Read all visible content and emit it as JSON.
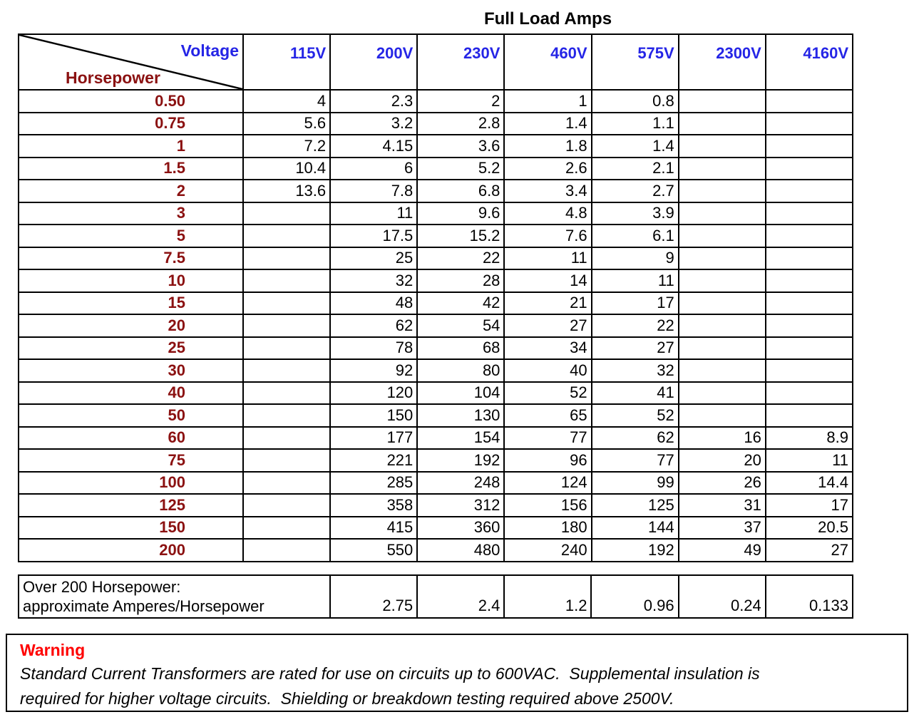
{
  "title": "Full Load Amps",
  "colors": {
    "header_blue": "#2525E6",
    "hp_red": "#8B1111",
    "warning_red": "#FF0000",
    "line_black": "#000000"
  },
  "table": {
    "corner": {
      "top_right_label": "Voltage",
      "bottom_left_label": "Horsepower"
    },
    "voltage_headers": [
      "115V",
      "200V",
      "230V",
      "460V",
      "575V",
      "2300V",
      "4160V"
    ],
    "rows": [
      {
        "hp": "0.50",
        "amps": [
          "4",
          "2.3",
          "2",
          "1",
          "0.8",
          "",
          ""
        ]
      },
      {
        "hp": "0.75",
        "amps": [
          "5.6",
          "3.2",
          "2.8",
          "1.4",
          "1.1",
          "",
          ""
        ]
      },
      {
        "hp": "1",
        "amps": [
          "7.2",
          "4.15",
          "3.6",
          "1.8",
          "1.4",
          "",
          ""
        ]
      },
      {
        "hp": "1.5",
        "amps": [
          "10.4",
          "6",
          "5.2",
          "2.6",
          "2.1",
          "",
          ""
        ]
      },
      {
        "hp": "2",
        "amps": [
          "13.6",
          "7.8",
          "6.8",
          "3.4",
          "2.7",
          "",
          ""
        ]
      },
      {
        "hp": "3",
        "amps": [
          "",
          "11",
          "9.6",
          "4.8",
          "3.9",
          "",
          ""
        ]
      },
      {
        "hp": "5",
        "amps": [
          "",
          "17.5",
          "15.2",
          "7.6",
          "6.1",
          "",
          ""
        ]
      },
      {
        "hp": "7.5",
        "amps": [
          "",
          "25",
          "22",
          "11",
          "9",
          "",
          ""
        ]
      },
      {
        "hp": "10",
        "amps": [
          "",
          "32",
          "28",
          "14",
          "11",
          "",
          ""
        ]
      },
      {
        "hp": "15",
        "amps": [
          "",
          "48",
          "42",
          "21",
          "17",
          "",
          ""
        ]
      },
      {
        "hp": "20",
        "amps": [
          "",
          "62",
          "54",
          "27",
          "22",
          "",
          ""
        ]
      },
      {
        "hp": "25",
        "amps": [
          "",
          "78",
          "68",
          "34",
          "27",
          "",
          ""
        ]
      },
      {
        "hp": "30",
        "amps": [
          "",
          "92",
          "80",
          "40",
          "32",
          "",
          ""
        ]
      },
      {
        "hp": "40",
        "amps": [
          "",
          "120",
          "104",
          "52",
          "41",
          "",
          ""
        ]
      },
      {
        "hp": "50",
        "amps": [
          "",
          "150",
          "130",
          "65",
          "52",
          "",
          ""
        ]
      },
      {
        "hp": "60",
        "amps": [
          "",
          "177",
          "154",
          "77",
          "62",
          "16",
          "8.9"
        ]
      },
      {
        "hp": "75",
        "amps": [
          "",
          "221",
          "192",
          "96",
          "77",
          "20",
          "11"
        ]
      },
      {
        "hp": "100",
        "amps": [
          "",
          "285",
          "248",
          "124",
          "99",
          "26",
          "14.4"
        ]
      },
      {
        "hp": "125",
        "amps": [
          "",
          "358",
          "312",
          "156",
          "125",
          "31",
          "17"
        ]
      },
      {
        "hp": "150",
        "amps": [
          "",
          "415",
          "360",
          "180",
          "144",
          "37",
          "20.5"
        ]
      },
      {
        "hp": "200",
        "amps": [
          "",
          "550",
          "480",
          "240",
          "192",
          "49",
          "27"
        ]
      }
    ]
  },
  "over200": {
    "label_line1": "Over 200 Horsepower:",
    "label_line2": "approximate Amperes/Horsepower",
    "values": [
      "2.75",
      "2.4",
      "1.2",
      "0.96",
      "0.24",
      "0.133"
    ]
  },
  "warning": {
    "title": "Warning",
    "body": "Standard Current Transformers are rated for use on circuits up to 600VAC.  Supplemental insulation is\nrequired for higher voltage circuits.  Shielding or breakdown testing required above 2500V."
  }
}
